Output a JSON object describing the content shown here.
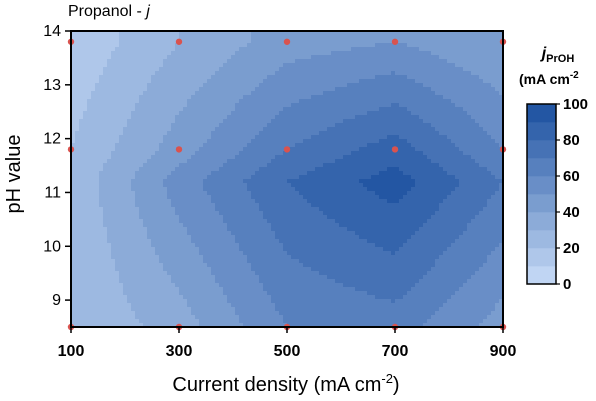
{
  "chart_data": {
    "type": "contour",
    "title_prefix": "Propanol - ",
    "title_var": "j",
    "xlabel_main": "Current density (mA cm",
    "xlabel_sup": "-2",
    "xlabel_close": ")",
    "ylabel": "pH value",
    "colorbar_var": "j",
    "colorbar_sub": "PrOH",
    "colorbar_units": "(mA cm",
    "colorbar_units_sup": "-2",
    "colorbar_ticks": [
      "0",
      "20",
      "40",
      "60",
      "80",
      "100"
    ],
    "colorbar_tick_values": [
      0,
      20,
      40,
      60,
      80,
      100
    ],
    "zlim": [
      0,
      100
    ],
    "levels": 10,
    "xlim": [
      100,
      900
    ],
    "ylim": [
      8.5,
      14
    ],
    "xticks": [
      "100",
      "300",
      "500",
      "700",
      "900"
    ],
    "xtick_values": [
      100,
      300,
      500,
      700,
      900
    ],
    "yticks": [
      "9",
      "10",
      "11",
      "12",
      "13",
      "14"
    ],
    "ytick_values": [
      9,
      10,
      11,
      12,
      13,
      14
    ],
    "x": [
      100,
      300,
      500,
      700,
      900
    ],
    "y": [
      8.5,
      11.2,
      11.8,
      13.8
    ],
    "z": [
      [
        20,
        35,
        60,
        65,
        45
      ],
      [
        22,
        55,
        80,
        95,
        70
      ],
      [
        20,
        45,
        70,
        85,
        60
      ],
      [
        12,
        30,
        45,
        50,
        40
      ]
    ],
    "sample_points": [
      {
        "x": 100,
        "y": 8.5
      },
      {
        "x": 300,
        "y": 8.5
      },
      {
        "x": 500,
        "y": 8.5
      },
      {
        "x": 700,
        "y": 8.5
      },
      {
        "x": 900,
        "y": 8.5
      },
      {
        "x": 100,
        "y": 11.8
      },
      {
        "x": 300,
        "y": 11.8
      },
      {
        "x": 500,
        "y": 11.8
      },
      {
        "x": 700,
        "y": 11.8
      },
      {
        "x": 900,
        "y": 11.8
      },
      {
        "x": 100,
        "y": 13.8
      },
      {
        "x": 300,
        "y": 13.8
      },
      {
        "x": 500,
        "y": 13.8
      },
      {
        "x": 700,
        "y": 13.8
      },
      {
        "x": 900,
        "y": 13.8
      }
    ],
    "colors": {
      "low": "#c9dcf7",
      "high": "#1a4f9f",
      "point": "#d9534f",
      "frame": "#000000"
    }
  }
}
